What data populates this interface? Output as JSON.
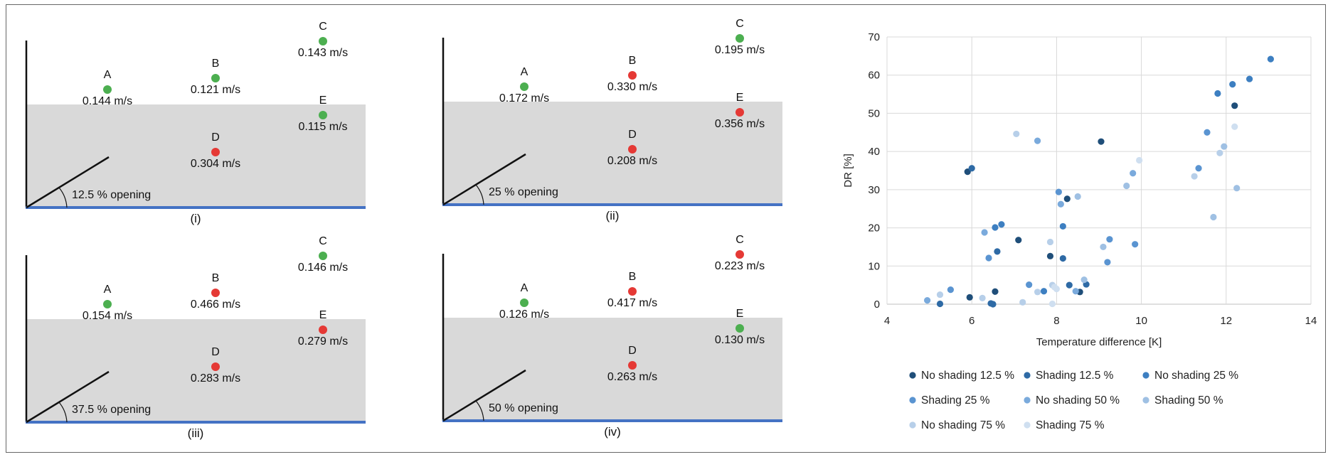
{
  "colors": {
    "green": "#4caf50",
    "red": "#e53935",
    "water": "#d9d9d9",
    "floor": "#4472c4"
  },
  "panels": [
    {
      "caption": "(i)",
      "opening": "12.5 % opening",
      "points": [
        {
          "id": "A",
          "value": "0.144 m/s",
          "status": "green"
        },
        {
          "id": "B",
          "value": "0.121 m/s",
          "status": "green"
        },
        {
          "id": "C",
          "value": "0.143 m/s",
          "status": "green"
        },
        {
          "id": "D",
          "value": "0.304 m/s",
          "status": "red"
        },
        {
          "id": "E",
          "value": "0.115 m/s",
          "status": "green"
        }
      ]
    },
    {
      "caption": "(ii)",
      "opening": "25 % opening",
      "points": [
        {
          "id": "A",
          "value": "0.172 m/s",
          "status": "green"
        },
        {
          "id": "B",
          "value": "0.330 m/s",
          "status": "red"
        },
        {
          "id": "C",
          "value": "0.195 m/s",
          "status": "green"
        },
        {
          "id": "D",
          "value": "0.208 m/s",
          "status": "red"
        },
        {
          "id": "E",
          "value": "0.356 m/s",
          "status": "red"
        }
      ]
    },
    {
      "caption": "(iii)",
      "opening": "37.5 % opening",
      "points": [
        {
          "id": "A",
          "value": "0.154 m/s",
          "status": "green"
        },
        {
          "id": "B",
          "value": "0.466 m/s",
          "status": "red"
        },
        {
          "id": "C",
          "value": "0.146 m/s",
          "status": "green"
        },
        {
          "id": "D",
          "value": "0.283 m/s",
          "status": "red"
        },
        {
          "id": "E",
          "value": "0.279 m/s",
          "status": "red"
        }
      ]
    },
    {
      "caption": "(iv)",
      "opening": "50 % opening",
      "points": [
        {
          "id": "A",
          "value": "0.126 m/s",
          "status": "green"
        },
        {
          "id": "B",
          "value": "0.417 m/s",
          "status": "red"
        },
        {
          "id": "C",
          "value": "0.223 m/s",
          "status": "red"
        },
        {
          "id": "D",
          "value": "0.263 m/s",
          "status": "red"
        },
        {
          "id": "E",
          "value": "0.130 m/s",
          "status": "green"
        }
      ]
    }
  ],
  "chart_data": {
    "type": "scatter",
    "xlabel": "Temperature difference [K]",
    "ylabel": "DR [%]",
    "xlim": [
      4,
      14
    ],
    "ylim": [
      0,
      70
    ],
    "xticks": [
      4,
      6,
      8,
      10,
      12,
      14
    ],
    "yticks": [
      0,
      10,
      20,
      30,
      40,
      50,
      60,
      70
    ],
    "grid": true,
    "legend_position": "bottom",
    "series": [
      {
        "name": "No shading 12.5 %",
        "color": "#1f4e79",
        "points": [
          [
            5.9,
            34.7
          ],
          [
            7.1,
            16.8
          ],
          [
            7.85,
            12.6
          ],
          [
            8.25,
            27.6
          ],
          [
            8.55,
            3.2
          ],
          [
            9.05,
            42.6
          ],
          [
            12.2,
            52.0
          ],
          [
            5.95,
            1.8
          ],
          [
            6.55,
            3.3
          ]
        ]
      },
      {
        "name": "Shading 12.5 %",
        "color": "#2e6aa5",
        "points": [
          [
            6.0,
            35.6
          ],
          [
            6.6,
            13.8
          ],
          [
            8.15,
            12.0
          ],
          [
            8.3,
            5.0
          ],
          [
            8.7,
            5.2
          ],
          [
            6.45,
            0.2
          ],
          [
            6.5,
            0.0
          ],
          [
            5.25,
            0.1
          ]
        ]
      },
      {
        "name": "No shading 25 %",
        "color": "#3d7fc1",
        "points": [
          [
            12.55,
            59.0
          ],
          [
            13.05,
            64.2
          ],
          [
            12.15,
            57.6
          ],
          [
            11.8,
            55.2
          ],
          [
            7.7,
            3.4
          ],
          [
            8.15,
            20.4
          ],
          [
            6.55,
            20.1
          ],
          [
            6.7,
            20.9
          ]
        ]
      },
      {
        "name": "Shading 25 %",
        "color": "#5a94d1",
        "points": [
          [
            11.55,
            45.0
          ],
          [
            11.35,
            35.6
          ],
          [
            9.85,
            15.7
          ],
          [
            9.25,
            17.0
          ],
          [
            9.2,
            11.0
          ],
          [
            8.05,
            29.4
          ],
          [
            7.35,
            5.1
          ],
          [
            5.5,
            3.8
          ],
          [
            6.4,
            12.1
          ]
        ]
      },
      {
        "name": "No shading 50 %",
        "color": "#7aaadc",
        "points": [
          [
            9.8,
            34.3
          ],
          [
            8.1,
            26.2
          ],
          [
            7.55,
            42.8
          ],
          [
            6.3,
            18.8
          ],
          [
            4.95,
            1.0
          ],
          [
            8.45,
            3.4
          ]
        ]
      },
      {
        "name": "Shading 50 %",
        "color": "#9fc0e3",
        "points": [
          [
            11.7,
            22.8
          ],
          [
            12.25,
            30.4
          ],
          [
            11.95,
            41.3
          ],
          [
            8.5,
            28.2
          ],
          [
            9.65,
            31.0
          ],
          [
            9.1,
            15.0
          ],
          [
            8.65,
            6.4
          ]
        ]
      },
      {
        "name": "No shading 75 %",
        "color": "#b7cfe9",
        "points": [
          [
            7.05,
            44.6
          ],
          [
            11.85,
            39.6
          ],
          [
            11.25,
            33.5
          ],
          [
            7.85,
            16.3
          ],
          [
            7.55,
            3.2
          ],
          [
            7.9,
            5.0
          ],
          [
            6.25,
            1.6
          ],
          [
            5.25,
            2.5
          ],
          [
            7.2,
            0.5
          ]
        ]
      },
      {
        "name": "Shading 75 %",
        "color": "#cfdff0",
        "points": [
          [
            12.2,
            46.5
          ],
          [
            9.95,
            37.7
          ],
          [
            7.95,
            4.5
          ],
          [
            8.0,
            4.0
          ],
          [
            7.9,
            0.1
          ]
        ]
      }
    ]
  }
}
